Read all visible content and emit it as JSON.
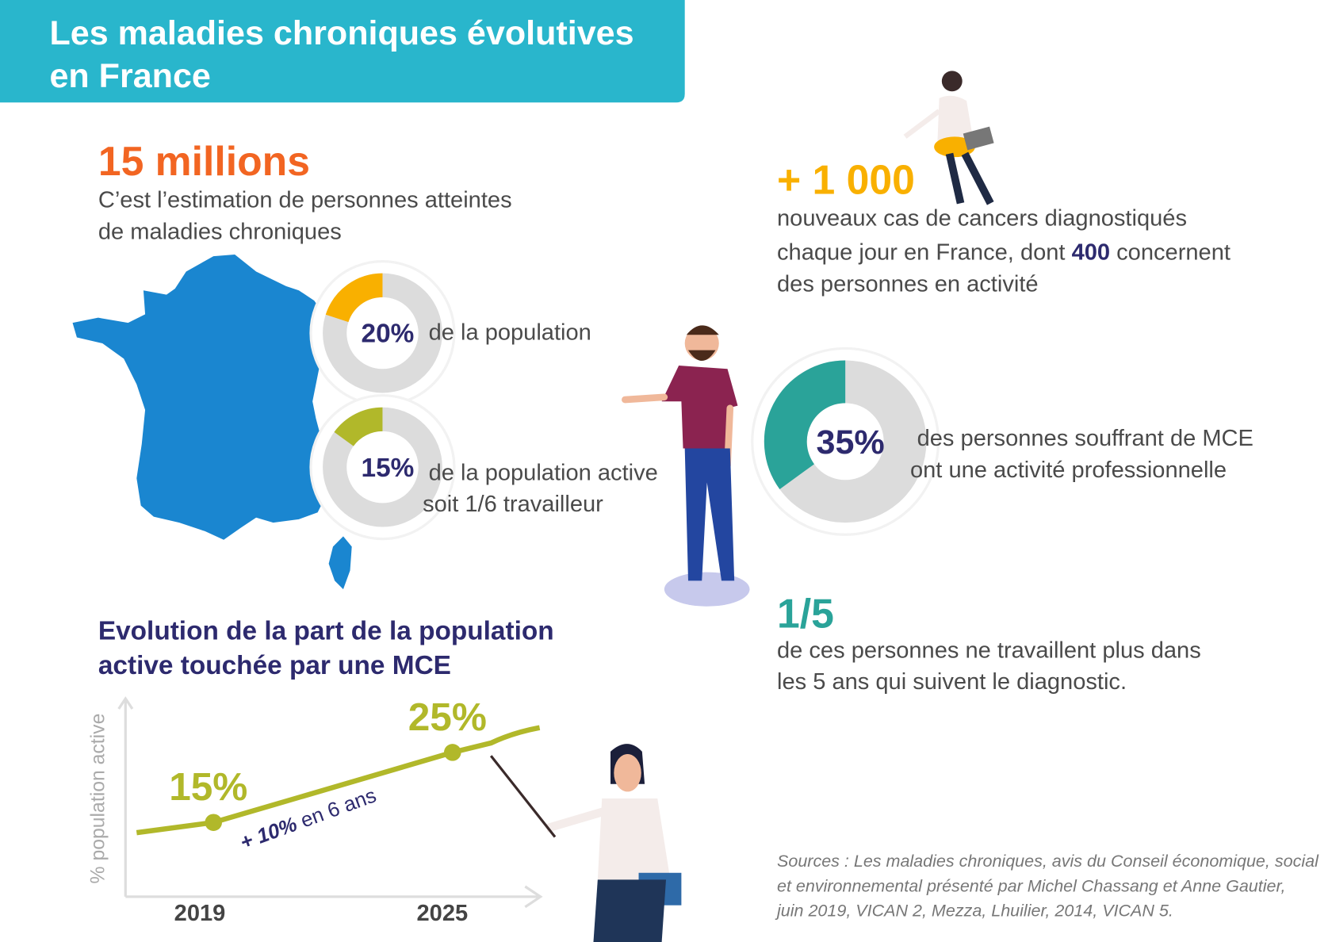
{
  "header": {
    "title_lines": [
      "Les maladies chroniques évolutives",
      "en France"
    ]
  },
  "headline": {
    "figure": "15 millions",
    "lines": [
      "C’est l’estimation de personnes atteintes",
      "de maladies chroniques"
    ]
  },
  "donuts": [
    {
      "value": 20,
      "label": "20%",
      "lines": [
        "de la population"
      ],
      "color": "#f9b000"
    },
    {
      "value": 15,
      "label": "15%",
      "lines": [
        "de la population active",
        "soit 1/6 travailleur"
      ],
      "color": "#b1b82a"
    },
    {
      "value": 35,
      "label": "35%",
      "lines": [
        "des personnes souffrant de MCE",
        "ont une activité professionnelle"
      ],
      "color": "#2aa399"
    }
  ],
  "cancer": {
    "figure": "+ 1 000",
    "line1": "nouveaux cas de cancers diagnostiqués",
    "line2_before": "chaque jour en France, dont ",
    "line2_bold": "400",
    "line2_after": " concernent",
    "line3": "des personnes en activité"
  },
  "fraction": {
    "figure": "1/5",
    "lines": [
      "de ces personnes ne travaillent plus dans",
      "les 5 ans qui suivent le diagnostic."
    ]
  },
  "line_chart": {
    "title_lines": [
      "Evolution de la part de la population",
      "active touchée par une MCE"
    ],
    "y_label": "% population active",
    "x": [
      "2019",
      "2025"
    ],
    "values": [
      15,
      25
    ],
    "value_labels": [
      "15%",
      "25%"
    ],
    "annotation_bold": "+ 10%",
    "annotation_text": " en 6 ans",
    "color": "#b1b82a"
  },
  "sources": [
    "Sources : Les maladies chroniques, avis du Conseil économique, social",
    "et environnemental présenté par Michel Chassang et Anne Gautier,",
    "juin 2019, VICAN 2, Mezza, Lhuilier, 2014, VICAN 5."
  ]
}
